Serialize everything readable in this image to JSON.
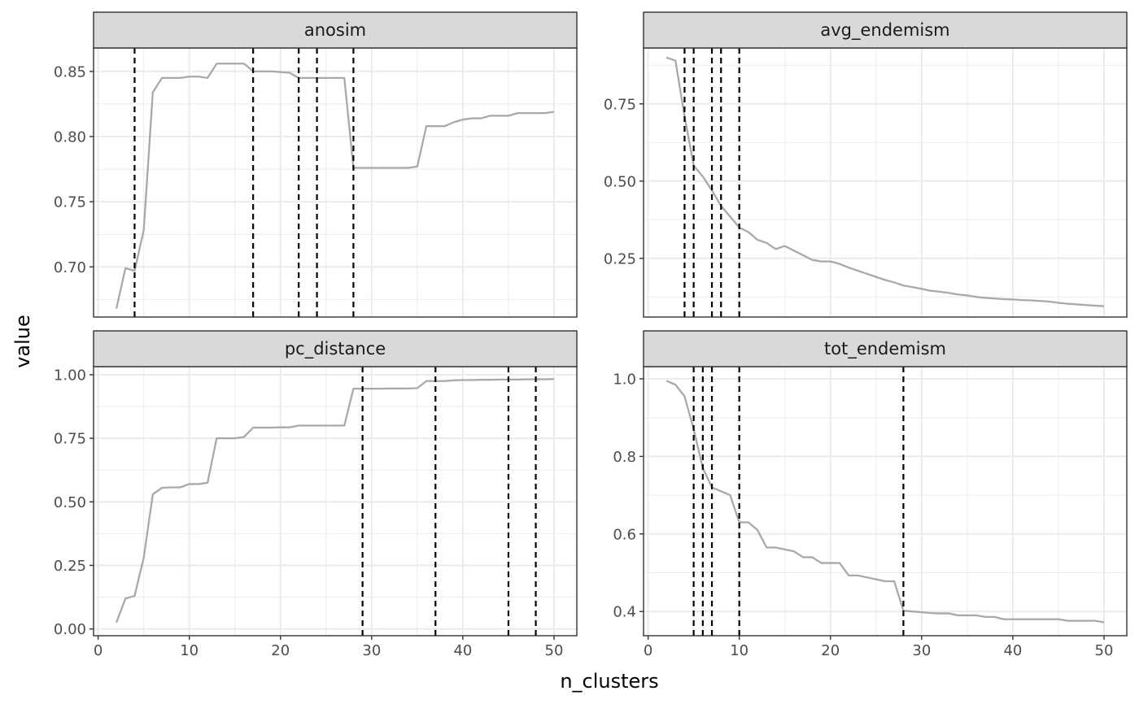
{
  "chart_data": {
    "type": "line",
    "xlabel": "n_clusters",
    "ylabel": "value",
    "line_color": "#a9a9a9",
    "cutoff_line_color": "#000000",
    "strip_fill": "#d9d9d9",
    "grid_color": "#ebebeb",
    "x_ticks": [
      0,
      10,
      20,
      30,
      40,
      50
    ],
    "x_tick_labels": [
      "0",
      "10",
      "20",
      "30",
      "40",
      "50"
    ],
    "xlim": [
      -0.5,
      52.5
    ],
    "panels": [
      {
        "name": "anosim",
        "ylim": [
          0.6615,
          0.868
        ],
        "y_ticks": [
          0.7,
          0.75,
          0.8,
          0.85
        ],
        "y_tick_labels": [
          "0.70",
          "0.75",
          "0.80",
          "0.85"
        ],
        "x": [
          2,
          3,
          4,
          5,
          6,
          7,
          8,
          9,
          10,
          11,
          12,
          13,
          14,
          15,
          16,
          17,
          18,
          19,
          20,
          21,
          22,
          23,
          24,
          25,
          26,
          27,
          28,
          29,
          30,
          31,
          32,
          33,
          34,
          35,
          36,
          37,
          38,
          39,
          40,
          41,
          42,
          43,
          44,
          45,
          46,
          47,
          48,
          49,
          50
        ],
        "y": [
          0.668,
          0.699,
          0.697,
          0.728,
          0.834,
          0.845,
          0.845,
          0.845,
          0.846,
          0.846,
          0.845,
          0.856,
          0.856,
          0.856,
          0.856,
          0.85,
          0.85,
          0.85,
          0.8495,
          0.849,
          0.845,
          0.845,
          0.845,
          0.845,
          0.845,
          0.845,
          0.776,
          0.776,
          0.776,
          0.776,
          0.776,
          0.776,
          0.776,
          0.777,
          0.808,
          0.808,
          0.808,
          0.811,
          0.813,
          0.814,
          0.814,
          0.816,
          0.816,
          0.816,
          0.818,
          0.818,
          0.818,
          0.818,
          0.819
        ],
        "cutoffs": [
          4,
          17,
          22,
          24,
          28
        ]
      },
      {
        "name": "avg_endemism",
        "ylim": [
          0.06,
          0.931
        ],
        "y_ticks": [
          0.25,
          0.5,
          0.75
        ],
        "y_tick_labels": [
          "0.25",
          "0.50",
          "0.75"
        ],
        "x": [
          2,
          3,
          4,
          5,
          6,
          7,
          8,
          9,
          10,
          11,
          12,
          13,
          14,
          15,
          16,
          17,
          18,
          19,
          20,
          21,
          22,
          23,
          24,
          25,
          26,
          27,
          28,
          29,
          30,
          31,
          32,
          33,
          34,
          35,
          36,
          37,
          38,
          39,
          40,
          41,
          42,
          43,
          44,
          45,
          46,
          47,
          48,
          49,
          50
        ],
        "y": [
          0.9,
          0.89,
          0.71,
          0.55,
          0.515,
          0.47,
          0.42,
          0.385,
          0.35,
          0.335,
          0.31,
          0.3,
          0.28,
          0.29,
          0.275,
          0.26,
          0.245,
          0.24,
          0.24,
          0.232,
          0.22,
          0.21,
          0.2,
          0.19,
          0.18,
          0.172,
          0.162,
          0.157,
          0.151,
          0.145,
          0.142,
          0.138,
          0.133,
          0.13,
          0.125,
          0.122,
          0.12,
          0.118,
          0.117,
          0.115,
          0.114,
          0.112,
          0.11,
          0.106,
          0.103,
          0.101,
          0.099,
          0.097,
          0.095
        ],
        "cutoffs": [
          4,
          5,
          7,
          8,
          10
        ]
      },
      {
        "name": "pc_distance",
        "ylim": [
          -0.0265,
          1.0318
        ],
        "y_ticks": [
          0,
          0.25,
          0.5,
          0.75,
          1.0
        ],
        "y_tick_labels": [
          "0.00",
          "0.25",
          "0.50",
          "0.75",
          "1.00"
        ],
        "x": [
          2,
          3,
          4,
          5,
          6,
          7,
          8,
          9,
          10,
          11,
          12,
          13,
          14,
          15,
          16,
          17,
          18,
          19,
          20,
          21,
          22,
          23,
          24,
          25,
          26,
          27,
          28,
          29,
          30,
          31,
          32,
          33,
          34,
          35,
          36,
          37,
          38,
          39,
          40,
          41,
          42,
          43,
          44,
          45,
          46,
          47,
          48,
          49,
          50
        ],
        "y": [
          0.025,
          0.12,
          0.13,
          0.28,
          0.53,
          0.555,
          0.557,
          0.557,
          0.57,
          0.57,
          0.575,
          0.75,
          0.75,
          0.75,
          0.755,
          0.792,
          0.792,
          0.792,
          0.793,
          0.793,
          0.8,
          0.8,
          0.8,
          0.8,
          0.8,
          0.8,
          0.945,
          0.945,
          0.945,
          0.945,
          0.946,
          0.946,
          0.946,
          0.947,
          0.975,
          0.975,
          0.975,
          0.978,
          0.979,
          0.979,
          0.98,
          0.98,
          0.981,
          0.981,
          0.981,
          0.982,
          0.982,
          0.982,
          0.983
        ],
        "cutoffs": [
          29,
          37,
          45,
          48
        ]
      },
      {
        "name": "tot_endemism",
        "ylim": [
          0.3375,
          1.0315
        ],
        "y_ticks": [
          0.4,
          0.6,
          0.8,
          1.0
        ],
        "y_tick_labels": [
          "0.4",
          "0.6",
          "0.8",
          "1.0"
        ],
        "x": [
          2,
          3,
          4,
          5,
          6,
          7,
          8,
          9,
          10,
          11,
          12,
          13,
          14,
          15,
          16,
          17,
          18,
          19,
          20,
          21,
          22,
          23,
          24,
          25,
          26,
          27,
          28,
          29,
          30,
          31,
          32,
          33,
          34,
          35,
          36,
          37,
          38,
          39,
          40,
          41,
          42,
          43,
          44,
          45,
          46,
          47,
          48,
          49,
          50
        ],
        "y": [
          0.995,
          0.985,
          0.955,
          0.87,
          0.77,
          0.72,
          0.71,
          0.7,
          0.63,
          0.63,
          0.61,
          0.565,
          0.565,
          0.56,
          0.555,
          0.54,
          0.54,
          0.525,
          0.525,
          0.525,
          0.493,
          0.493,
          0.488,
          0.483,
          0.478,
          0.478,
          0.402,
          0.4,
          0.398,
          0.396,
          0.395,
          0.395,
          0.39,
          0.39,
          0.39,
          0.386,
          0.386,
          0.38,
          0.38,
          0.38,
          0.38,
          0.38,
          0.38,
          0.38,
          0.376,
          0.376,
          0.376,
          0.376,
          0.372
        ],
        "cutoffs": [
          5,
          6,
          7,
          10,
          28
        ]
      }
    ]
  }
}
